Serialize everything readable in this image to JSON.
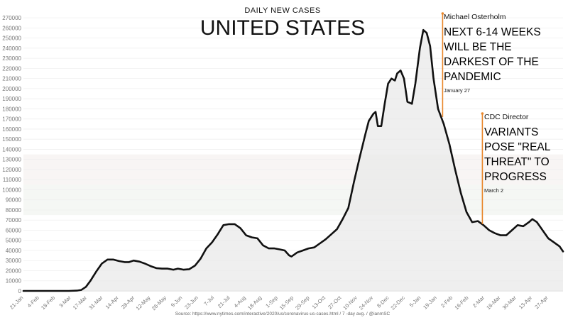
{
  "chart_data": {
    "type": "line",
    "subtitle": "DAILY NEW CASES",
    "title": "UNITED STATES",
    "ylim": [
      0,
      275000
    ],
    "yticks": [
      0,
      10000,
      20000,
      30000,
      40000,
      50000,
      60000,
      70000,
      80000,
      90000,
      100000,
      110000,
      120000,
      130000,
      140000,
      150000,
      160000,
      170000,
      180000,
      190000,
      200000,
      210000,
      220000,
      230000,
      240000,
      250000,
      260000,
      270000
    ],
    "xtick_labels": [
      "21-Jan",
      "4-Feb",
      "18-Feb",
      "3-Mar",
      "17-Mar",
      "31-Mar",
      "14-Apr",
      "28-Apr",
      "12-May",
      "26-May",
      "9-Jun",
      "23-Jun",
      "7-Jul",
      "21-Jul",
      "4-Aug",
      "18-Aug",
      "1-Sep",
      "15-Sep",
      "29-Sep",
      "13-Oct",
      "27-Oct",
      "10-Nov",
      "24-Nov",
      "8-Dec",
      "22-Dec",
      "5-Jan",
      "19-Jan",
      "2-Feb",
      "16-Feb",
      "2-Mar",
      "16-Mar",
      "30-Mar",
      "13-Apr",
      "27-Apr"
    ],
    "x_start": "2020-01-21",
    "series": [
      {
        "name": "",
        "color": "#111111",
        "points": [
          [
            "2020-01-21",
            0
          ],
          [
            "2020-03-01",
            0
          ],
          [
            "2020-03-08",
            300
          ],
          [
            "2020-03-12",
            1000
          ],
          [
            "2020-03-16",
            4000
          ],
          [
            "2020-03-20",
            10000
          ],
          [
            "2020-03-25",
            19000
          ],
          [
            "2020-03-30",
            27000
          ],
          [
            "2020-04-04",
            31000
          ],
          [
            "2020-04-09",
            31000
          ],
          [
            "2020-04-14",
            29500
          ],
          [
            "2020-04-19",
            28500
          ],
          [
            "2020-04-23",
            28500
          ],
          [
            "2020-04-27",
            30000
          ],
          [
            "2020-05-02",
            29000
          ],
          [
            "2020-05-07",
            27000
          ],
          [
            "2020-05-12",
            24500
          ],
          [
            "2020-05-17",
            22500
          ],
          [
            "2020-05-22",
            22000
          ],
          [
            "2020-05-27",
            22000
          ],
          [
            "2020-06-01",
            21000
          ],
          [
            "2020-06-05",
            22000
          ],
          [
            "2020-06-10",
            21000
          ],
          [
            "2020-06-15",
            21500
          ],
          [
            "2020-06-20",
            25000
          ],
          [
            "2020-06-25",
            32000
          ],
          [
            "2020-06-30",
            42000
          ],
          [
            "2020-07-05",
            48000
          ],
          [
            "2020-07-10",
            56000
          ],
          [
            "2020-07-15",
            65000
          ],
          [
            "2020-07-20",
            66000
          ],
          [
            "2020-07-25",
            66000
          ],
          [
            "2020-07-30",
            62000
          ],
          [
            "2020-08-04",
            55000
          ],
          [
            "2020-08-09",
            53000
          ],
          [
            "2020-08-14",
            52000
          ],
          [
            "2020-08-19",
            45000
          ],
          [
            "2020-08-24",
            42000
          ],
          [
            "2020-08-29",
            42000
          ],
          [
            "2020-09-03",
            41000
          ],
          [
            "2020-09-07",
            40000
          ],
          [
            "2020-09-11",
            35000
          ],
          [
            "2020-09-13",
            34000
          ],
          [
            "2020-09-18",
            38000
          ],
          [
            "2020-09-23",
            40000
          ],
          [
            "2020-09-28",
            42000
          ],
          [
            "2020-10-03",
            43000
          ],
          [
            "2020-10-08",
            47000
          ],
          [
            "2020-10-13",
            51000
          ],
          [
            "2020-10-18",
            56000
          ],
          [
            "2020-10-23",
            61000
          ],
          [
            "2020-10-28",
            71000
          ],
          [
            "2020-11-02",
            82000
          ],
          [
            "2020-11-07",
            108000
          ],
          [
            "2020-11-12",
            132000
          ],
          [
            "2020-11-17",
            155000
          ],
          [
            "2020-11-20",
            168000
          ],
          [
            "2020-11-24",
            175000
          ],
          [
            "2020-11-26",
            177000
          ],
          [
            "2020-11-28",
            163000
          ],
          [
            "2020-12-01",
            163000
          ],
          [
            "2020-12-04",
            185000
          ],
          [
            "2020-12-07",
            205000
          ],
          [
            "2020-12-10",
            210000
          ],
          [
            "2020-12-13",
            208000
          ],
          [
            "2020-12-15",
            215000
          ],
          [
            "2020-12-18",
            218000
          ],
          [
            "2020-12-21",
            210000
          ],
          [
            "2020-12-24",
            187000
          ],
          [
            "2020-12-28",
            185000
          ],
          [
            "2020-12-31",
            205000
          ],
          [
            "2021-01-04",
            240000
          ],
          [
            "2021-01-07",
            258000
          ],
          [
            "2021-01-10",
            255000
          ],
          [
            "2021-01-13",
            242000
          ],
          [
            "2021-01-16",
            210000
          ],
          [
            "2021-01-20",
            180000
          ],
          [
            "2021-01-25",
            165000
          ],
          [
            "2021-01-30",
            145000
          ],
          [
            "2021-02-04",
            120000
          ],
          [
            "2021-02-09",
            97000
          ],
          [
            "2021-02-14",
            78000
          ],
          [
            "2021-02-19",
            68000
          ],
          [
            "2021-02-24",
            69000
          ],
          [
            "2021-03-01",
            65000
          ],
          [
            "2021-03-06",
            60000
          ],
          [
            "2021-03-11",
            57000
          ],
          [
            "2021-03-16",
            55000
          ],
          [
            "2021-03-21",
            55000
          ],
          [
            "2021-03-26",
            60000
          ],
          [
            "2021-03-31",
            65000
          ],
          [
            "2021-04-05",
            64000
          ],
          [
            "2021-04-10",
            68000
          ],
          [
            "2021-04-13",
            71000
          ],
          [
            "2021-04-17",
            68000
          ],
          [
            "2021-04-22",
            60000
          ],
          [
            "2021-04-27",
            52000
          ],
          [
            "2021-05-02",
            48000
          ],
          [
            "2021-05-07",
            44000
          ],
          [
            "2021-05-10",
            39000
          ]
        ]
      }
    ],
    "annotations": [
      {
        "date": "2021-01-24",
        "value": 172000,
        "source": "Michael Osterholm",
        "lines": [
          "NEXT 6-14 WEEKS",
          "WILL BE THE",
          "DARKEST OF THE",
          "PANDEMIC"
        ],
        "when": "January 27",
        "color": "#e8862a"
      },
      {
        "date": "2021-02-28",
        "value": 66000,
        "source": "CDC Director",
        "lines": [
          "VARIANTS",
          "POSE \"REAL",
          "THREAT\" TO",
          "PROGRESS"
        ],
        "when": "March 2",
        "color": "#e8862a"
      }
    ],
    "source_text": "Source: https://www.nytimes.com/interactive/2020/us/coronavirus-us-cases.html / 7 -day avg. / @ianmSC",
    "grid": true,
    "legend": "none"
  }
}
